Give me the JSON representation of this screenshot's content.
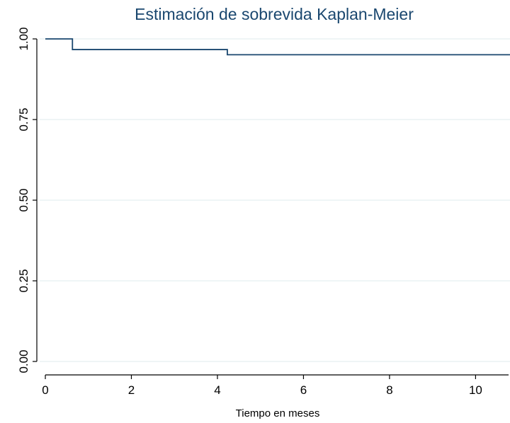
{
  "chart_data": {
    "type": "line",
    "title": "Estimación de sobrevida Kaplan-Meier",
    "xlabel": "Tiempo en meses",
    "ylabel": "",
    "xlim": [
      0,
      10.8
    ],
    "ylim": [
      0,
      1
    ],
    "x_ticks": [
      {
        "value": 0,
        "label": "0"
      },
      {
        "value": 2,
        "label": "2"
      },
      {
        "value": 4,
        "label": "4"
      },
      {
        "value": 6,
        "label": "6"
      },
      {
        "value": 8,
        "label": "8"
      },
      {
        "value": 10,
        "label": "10"
      }
    ],
    "y_ticks": [
      {
        "value": 0,
        "label": "0.00"
      },
      {
        "value": 0.25,
        "label": "0.25"
      },
      {
        "value": 0.5,
        "label": "0.50"
      },
      {
        "value": 0.75,
        "label": "0.75"
      },
      {
        "value": 1,
        "label": "1.00"
      }
    ],
    "grid": true,
    "series": [
      {
        "step": "post",
        "x": [
          0,
          0.63,
          4.23,
          10.8
        ],
        "y": [
          1.0,
          0.967,
          0.951,
          0.951
        ]
      }
    ],
    "colors": {
      "line": "#1a476f",
      "title": "#1a476f",
      "grid": "#eaf2f3",
      "axis": "#000000"
    }
  }
}
